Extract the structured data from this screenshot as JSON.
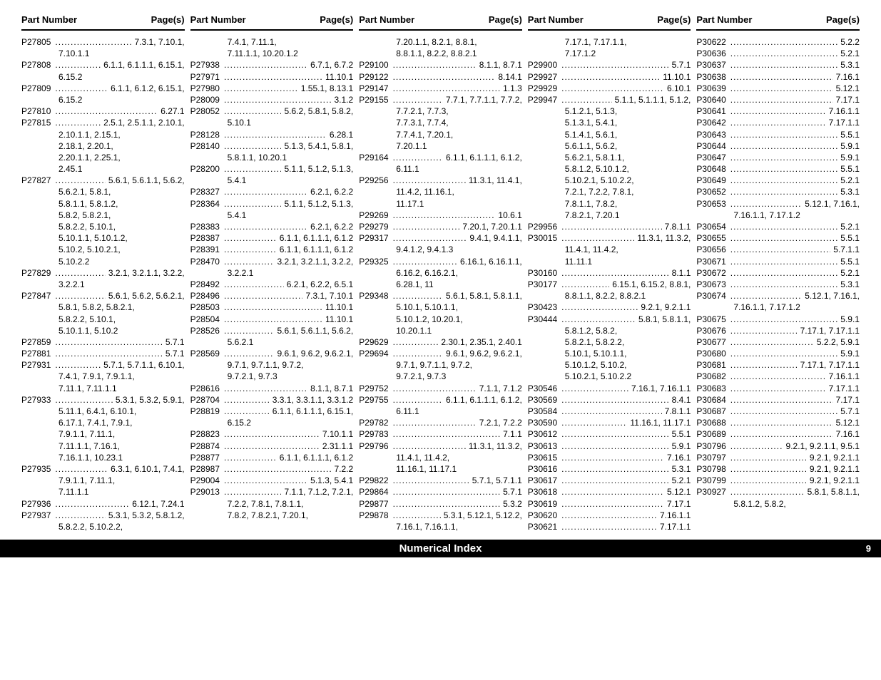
{
  "header": {
    "part": "Part Number",
    "pages": "Page(s)"
  },
  "footer": {
    "title": "Numerical Index",
    "page": "9"
  },
  "columns": [
    [
      {
        "pn": "P27805",
        "pg": "7.3.1, 7.10.1,"
      },
      {
        "cont": "7.10.1.1"
      },
      {
        "pn": "P27808",
        "pg": "6.1.1, 6.1.1.1, 6.15.1,"
      },
      {
        "cont": "6.15.2"
      },
      {
        "pn": "P27809",
        "pg": "6.1.1, 6.1.2, 6.15.1,"
      },
      {
        "cont": "6.15.2"
      },
      {
        "pn": "P27810",
        "pg": "6.27.1"
      },
      {
        "pn": "P27815",
        "pg": "2.5.1, 2.5.1.1, 2.10.1,"
      },
      {
        "cont": "2.10.1.1, 2.15.1,"
      },
      {
        "cont": "2.18.1, 2.20.1,"
      },
      {
        "cont": "2.20.1.1, 2.25.1,"
      },
      {
        "cont": "2.45.1"
      },
      {
        "pn": "P27827",
        "pg": "5.6.1, 5.6.1.1, 5.6.2,"
      },
      {
        "cont": "5.6.2.1, 5.8.1,"
      },
      {
        "cont": "5.8.1.1, 5.8.1.2,"
      },
      {
        "cont": "5.8.2, 5.8.2.1,"
      },
      {
        "cont": "5.8.2.2, 5.10.1,"
      },
      {
        "cont": "5.10.1.1, 5.10.1.2,"
      },
      {
        "cont": "5.10.2, 5.10.2.1,"
      },
      {
        "cont": "5.10.2.2"
      },
      {
        "pn": "P27829",
        "pg": "3.2.1, 3.2.1.1, 3.2.2,"
      },
      {
        "cont": "3.2.2.1"
      },
      {
        "pn": "P27847",
        "pg": "5.6.1, 5.6.2, 5.6.2.1,"
      },
      {
        "cont": "5.8.1, 5.8.2, 5.8.2.1,"
      },
      {
        "cont": "5.8.2.2, 5.10.1,"
      },
      {
        "cont": "5.10.1.1, 5.10.2"
      },
      {
        "pn": "P27859",
        "pg": "5.7.1"
      },
      {
        "pn": "P27881",
        "pg": "5.7.1"
      },
      {
        "pn": "P27931",
        "pg": "5.7.1, 5.7.1.1, 6.10.1,"
      },
      {
        "cont": "7.4.1, 7.9.1, 7.9.1.1,"
      },
      {
        "cont": "7.11.1, 7.11.1.1"
      },
      {
        "pn": "P27933",
        "pg": "5.3.1, 5.3.2, 5.9.1,"
      },
      {
        "cont": "5.11.1, 6.4.1, 6.10.1,"
      },
      {
        "cont": "6.17.1, 7.4.1, 7.9.1,"
      },
      {
        "cont": "7.9.1.1, 7.11.1,"
      },
      {
        "cont": "7.11.1.1, 7.16.1,"
      },
      {
        "cont": "7.16.1.1, 10.23.1"
      },
      {
        "pn": "P27935",
        "pg": "6.3.1, 6.10.1, 7.4.1,"
      },
      {
        "cont": "7.9.1.1, 7.11.1,"
      },
      {
        "cont": "7.11.1.1"
      },
      {
        "pn": "P27936",
        "pg": "6.12.1, 7.24.1"
      },
      {
        "pn": "P27937",
        "pg": "5.3.1, 5.3.2, 5.8.1.2,"
      },
      {
        "cont": "5.8.2.2, 5.10.2.2,"
      }
    ],
    [
      {
        "cont": "7.4.1, 7.11.1,"
      },
      {
        "cont": "7.11.1.1, 10.20.1.2"
      },
      {
        "pn": "P27938",
        "pg": "6.7.1, 6.7.2"
      },
      {
        "pn": "P27971",
        "pg": "11.10.1"
      },
      {
        "pn": "P27980",
        "pg": "1.55.1, 8.13.1"
      },
      {
        "pn": "P28009",
        "pg": "3.1.2"
      },
      {
        "pn": "P28052",
        "pg": "5.6.2, 5.8.1, 5.8.2,"
      },
      {
        "cont": "5.10.1"
      },
      {
        "pn": "P28128",
        "pg": "6.28.1"
      },
      {
        "pn": "P28140",
        "pg": "5.1.3, 5.4.1, 5.8.1,"
      },
      {
        "cont": "5.8.1.1, 10.20.1"
      },
      {
        "pn": "P28200",
        "pg": "5.1.1, 5.1.2, 5.1.3,"
      },
      {
        "cont": "5.4.1"
      },
      {
        "pn": "P28327",
        "pg": "6.2.1, 6.2.2"
      },
      {
        "pn": "P28364",
        "pg": "5.1.1, 5.1.2, 5.1.3,"
      },
      {
        "cont": "5.4.1"
      },
      {
        "pn": "P28383",
        "pg": "6.2.1, 6.2.2"
      },
      {
        "pn": "P28387",
        "pg": "6.1.1, 6.1.1.1, 6.1.2"
      },
      {
        "pn": "P28391",
        "pg": "6.1.1, 6.1.1.1, 6.1.2"
      },
      {
        "pn": "P28470",
        "pg": "3.2.1, 3.2.1.1, 3.2.2,"
      },
      {
        "cont": "3.2.2.1"
      },
      {
        "pn": "P28492",
        "pg": "6.2.1, 6.2.2, 6.5.1"
      },
      {
        "pn": "P28496",
        "pg": "7.3.1, 7.10.1"
      },
      {
        "pn": "P28503",
        "pg": "11.10.1"
      },
      {
        "pn": "P28504",
        "pg": "11.10.1"
      },
      {
        "pn": "P28526",
        "pg": "5.6.1, 5.6.1.1, 5.6.2,"
      },
      {
        "cont": "5.6.2.1"
      },
      {
        "pn": "P28569",
        "pg": "9.6.1, 9.6.2, 9.6.2.1,"
      },
      {
        "cont": "9.7.1, 9.7.1.1, 9.7.2,"
      },
      {
        "cont": "9.7.2.1, 9.7.3"
      },
      {
        "pn": "P28616",
        "pg": "8.1.1, 8.7.1"
      },
      {
        "pn": "P28704",
        "pg": "3.3.1, 3.3.1.1, 3.3.1.2"
      },
      {
        "pn": "P28819",
        "pg": "6.1.1, 6.1.1.1, 6.15.1,"
      },
      {
        "cont": "6.15.2"
      },
      {
        "pn": "P28823",
        "pg": "7.10.1.1"
      },
      {
        "pn": "P28874",
        "pg": "2.31.1.1"
      },
      {
        "pn": "P28877",
        "pg": "6.1.1, 6.1.1.1, 6.1.2"
      },
      {
        "pn": "P28987",
        "pg": "7.2.2"
      },
      {
        "pn": "P29004",
        "pg": "5.1.3, 5.4.1"
      },
      {
        "pn": "P29013",
        "pg": "7.1.1, 7.1.2, 7.2.1,"
      },
      {
        "cont": "7.2.2, 7.8.1, 7.8.1.1,"
      },
      {
        "cont": "7.8.2, 7.8.2.1, 7.20.1,"
      }
    ],
    [
      {
        "cont": "7.20.1.1, 8.2.1, 8.8.1,"
      },
      {
        "cont": "8.8.1.1, 8.2.2, 8.8.2.1"
      },
      {
        "pn": "P29100",
        "pg": "8.1.1, 8.7.1"
      },
      {
        "pn": "P29122",
        "pg": "8.14.1"
      },
      {
        "pn": "P29147",
        "pg": "1.1.3"
      },
      {
        "pn": "P29155",
        "pg": "7.7.1, 7.7.1.1, 7.7.2,"
      },
      {
        "cont": "7.7.2.1, 7.7.3,"
      },
      {
        "cont": "7.7.3.1, 7.7.4,"
      },
      {
        "cont": "7.7.4.1, 7.20.1,"
      },
      {
        "cont": "7.20.1.1"
      },
      {
        "pn": "P29164",
        "pg": "6.1.1, 6.1.1.1, 6.1.2,"
      },
      {
        "cont": "6.11.1"
      },
      {
        "pn": "P29256",
        "pg": "11.3.1, 11.4.1,"
      },
      {
        "cont": "11.4.2, 11.16.1,"
      },
      {
        "cont": "11.17.1"
      },
      {
        "pn": "P29269",
        "pg": "10.6.1"
      },
      {
        "pn": "P29279",
        "pg": "7.20.1, 7.20.1.1"
      },
      {
        "pn": "P29317",
        "pg": "9.4.1, 9.4.1.1,"
      },
      {
        "cont": "9.4.1.2, 9.4.1.3"
      },
      {
        "pn": "P29325",
        "pg": "6.16.1, 6.16.1.1,"
      },
      {
        "cont": "6.16.2, 6.16.2.1,"
      },
      {
        "cont": "6.28.1, 11"
      },
      {
        "pn": "P29348",
        "pg": "5.6.1, 5.8.1, 5.8.1.1,"
      },
      {
        "cont": "5.10.1, 5.10.1.1,"
      },
      {
        "cont": "5.10.1.2, 10.20.1,"
      },
      {
        "cont": "10.20.1.1"
      },
      {
        "pn": "P29629",
        "pg": "2.30.1, 2.35.1, 2.40.1"
      },
      {
        "pn": "P29694",
        "pg": "9.6.1, 9.6.2, 9.6.2.1,"
      },
      {
        "cont": "9.7.1, 9.7.1.1, 9.7.2,"
      },
      {
        "cont": "9.7.2.1, 9.7.3"
      },
      {
        "pn": "P29752",
        "pg": "7.1.1, 7.1.2"
      },
      {
        "pn": "P29755",
        "pg": "6.1.1, 6.1.1.1, 6.1.2,"
      },
      {
        "cont": "6.11.1"
      },
      {
        "pn": "P29782",
        "pg": "7.2.1, 7.2.2"
      },
      {
        "pn": "P29783",
        "pg": "7.1.1"
      },
      {
        "pn": "P29796",
        "pg": "11.3.1, 11.3.2,"
      },
      {
        "cont": "11.4.1, 11.4.2,"
      },
      {
        "cont": "11.16.1, 11.17.1"
      },
      {
        "pn": "P29822",
        "pg": "5.7.1, 5.7.1.1"
      },
      {
        "pn": "P29864",
        "pg": "5.7.1"
      },
      {
        "pn": "P29877",
        "pg": "5.3.2"
      },
      {
        "pn": "P29878",
        "pg": "5.3.1, 5.12.1, 5.12.2,"
      },
      {
        "cont": "7.16.1, 7.16.1.1,"
      }
    ],
    [
      {
        "cont": "7.17.1, 7.17.1.1,"
      },
      {
        "cont": "7.17.1.2"
      },
      {
        "pn": "P29900",
        "pg": "5.7.1"
      },
      {
        "pn": "P29927",
        "pg": "11.10.1"
      },
      {
        "pn": "P29929",
        "pg": "6.10.1"
      },
      {
        "pn": "P29947",
        "pg": "5.1.1, 5.1.1.1, 5.1.2,"
      },
      {
        "cont": "5.1.2.1, 5.1.3,"
      },
      {
        "cont": "5.1.3.1, 5.4.1,"
      },
      {
        "cont": "5.1.4.1, 5.6.1,"
      },
      {
        "cont": "5.6.1.1, 5.6.2,"
      },
      {
        "cont": "5.6.2.1, 5.8.1.1,"
      },
      {
        "cont": "5.8.1.2, 5.10.1.2,"
      },
      {
        "cont": "5.10.2.1, 5.10.2.2,"
      },
      {
        "cont": "7.2.1, 7.2.2, 7.8.1,"
      },
      {
        "cont": "7.8.1.1, 7.8.2,"
      },
      {
        "cont": "7.8.2.1, 7.20.1"
      },
      {
        "pn": "P29956",
        "pg": "7.8.1.1"
      },
      {
        "pn": "P30015",
        "pg": "11.3.1, 11.3.2,"
      },
      {
        "cont": "11.4.1, 11.4.2,"
      },
      {
        "cont": "11.11.1"
      },
      {
        "pn": "P30160",
        "pg": "8.1.1"
      },
      {
        "pn": "P30177",
        "pg": "6.15.1, 6.15.2, 8.8.1,"
      },
      {
        "cont": "8.8.1.1, 8.2.2, 8.8.2.1"
      },
      {
        "pn": "P30423",
        "pg": "9.2.1, 9.2.1.1"
      },
      {
        "pn": "P30444",
        "pg": "5.8.1, 5.8.1.1,"
      },
      {
        "cont": "5.8.1.2, 5.8.2,"
      },
      {
        "cont": "5.8.2.1, 5.8.2.2,"
      },
      {
        "cont": "5.10.1, 5.10.1.1,"
      },
      {
        "cont": "5.10.1.2, 5.10.2,"
      },
      {
        "cont": "5.10.2.1, 5.10.2.2"
      },
      {
        "pn": "P30546",
        "pg": "7.16.1, 7.16.1.1"
      },
      {
        "pn": "P30569",
        "pg": "8.4.1"
      },
      {
        "pn": "P30584",
        "pg": "7.8.1.1"
      },
      {
        "pn": "P30590",
        "pg": "11.16.1, 11.17.1"
      },
      {
        "pn": "P30612",
        "pg": "5.5.1"
      },
      {
        "pn": "P30613",
        "pg": "5.9.1"
      },
      {
        "pn": "P30615",
        "pg": "7.16.1"
      },
      {
        "pn": "P30616",
        "pg": "5.3.1"
      },
      {
        "pn": "P30617",
        "pg": "5.2.1"
      },
      {
        "pn": "P30618",
        "pg": "5.12.1"
      },
      {
        "pn": "P30619",
        "pg": "7.17.1"
      },
      {
        "pn": "P30620",
        "pg": "7.16.1.1"
      },
      {
        "pn": "P30621",
        "pg": "7.17.1.1"
      }
    ],
    [
      {
        "pn": "P30622",
        "pg": "5.2.2"
      },
      {
        "pn": "P30636",
        "pg": "5.2.1"
      },
      {
        "pn": "P30637",
        "pg": "5.3.1"
      },
      {
        "pn": "P30638",
        "pg": "7.16.1"
      },
      {
        "pn": "P30639",
        "pg": "5.12.1"
      },
      {
        "pn": "P30640",
        "pg": "7.17.1"
      },
      {
        "pn": "P30641",
        "pg": "7.16.1.1"
      },
      {
        "pn": "P30642",
        "pg": "7.17.1.1"
      },
      {
        "pn": "P30643",
        "pg": "5.5.1"
      },
      {
        "pn": "P30644",
        "pg": "5.9.1"
      },
      {
        "pn": "P30647",
        "pg": "5.9.1"
      },
      {
        "pn": "P30648",
        "pg": "5.5.1"
      },
      {
        "pn": "P30649",
        "pg": "5.2.1"
      },
      {
        "pn": "P30652",
        "pg": "5.3.1"
      },
      {
        "pn": "P30653",
        "pg": "5.12.1, 7.16.1,"
      },
      {
        "cont": "7.16.1.1, 7.17.1.2"
      },
      {
        "pn": "P30654",
        "pg": "5.2.1"
      },
      {
        "pn": "P30655",
        "pg": "5.5.1"
      },
      {
        "pn": "P30656",
        "pg": "5.7.1.1"
      },
      {
        "pn": "P30671",
        "pg": "5.5.1"
      },
      {
        "pn": "P30672",
        "pg": "5.2.1"
      },
      {
        "pn": "P30673",
        "pg": "5.3.1"
      },
      {
        "pn": "P30674",
        "pg": "5.12.1, 7.16.1,"
      },
      {
        "cont": "7.16.1.1, 7.17.1.2"
      },
      {
        "pn": "P30675",
        "pg": "5.9.1"
      },
      {
        "pn": "P30676",
        "pg": "7.17.1, 7.17.1.1"
      },
      {
        "pn": "P30677",
        "pg": "5.2.2, 5.9.1"
      },
      {
        "pn": "P30680",
        "pg": "5.9.1"
      },
      {
        "pn": "P30681",
        "pg": "7.17.1, 7.17.1.1"
      },
      {
        "pn": "P30682",
        "pg": "7.16.1.1"
      },
      {
        "pn": "P30683",
        "pg": "7.17.1.1"
      },
      {
        "pn": "P30684",
        "pg": "7.17.1"
      },
      {
        "pn": "P30687",
        "pg": "5.7.1"
      },
      {
        "pn": "P30688",
        "pg": "5.12.1"
      },
      {
        "pn": "P30689",
        "pg": "7.16.1"
      },
      {
        "pn": "P30796",
        "pg": "9.2.1, 9.2.1.1, 9.5.1"
      },
      {
        "pn": "P30797",
        "pg": "9.2.1, 9.2.1.1"
      },
      {
        "pn": "P30798",
        "pg": "9.2.1, 9.2.1.1"
      },
      {
        "pn": "P30799",
        "pg": "9.2.1, 9.2.1.1"
      },
      {
        "pn": "P30927",
        "pg": "5.8.1, 5.8.1.1,"
      },
      {
        "cont": "5.8.1.2, 5.8.2,"
      }
    ]
  ]
}
